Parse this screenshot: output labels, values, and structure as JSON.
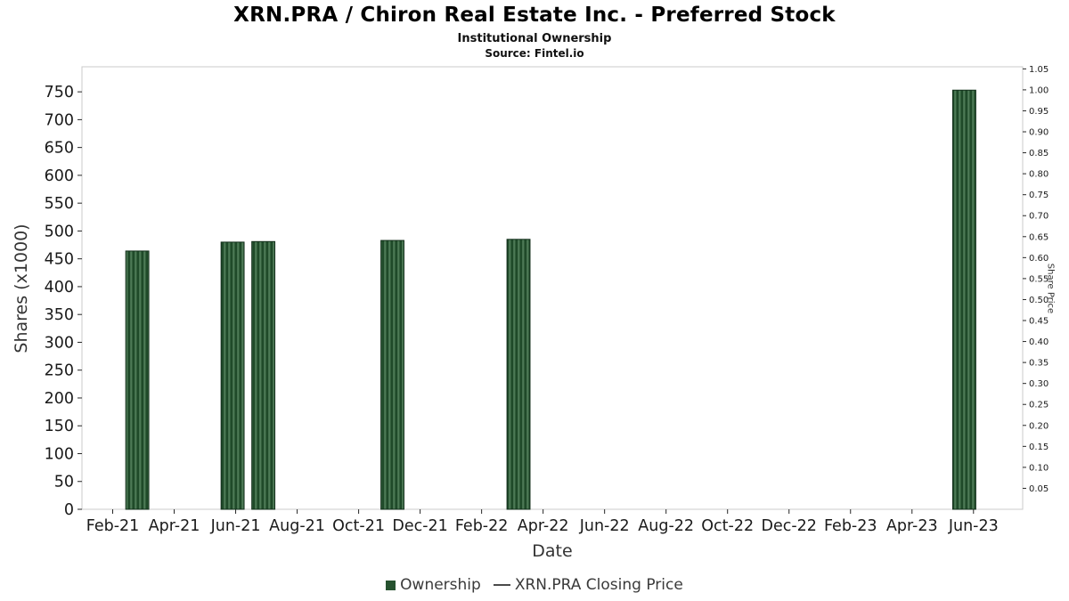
{
  "page": {
    "background": "#ffffff"
  },
  "chart_data": {
    "type": "bar",
    "title": "XRN.PRA / Chiron Real Estate Inc. - Preferred Stock",
    "subtitle": "Institutional Ownership",
    "source": "Source: Fintel.io",
    "xlabel": "Date",
    "ylabel_left": "Shares (x1000)",
    "ylabel_right": "Share Price",
    "x_tick_labels": [
      "Feb-21",
      "Apr-21",
      "Jun-21",
      "Aug-21",
      "Oct-21",
      "Dec-21",
      "Feb-22",
      "Apr-22",
      "Jun-22",
      "Aug-22",
      "Oct-22",
      "Dec-22",
      "Feb-23",
      "Apr-23",
      "Jun-23"
    ],
    "x_tick_positions": [
      1,
      3,
      5,
      7,
      9,
      11,
      13,
      15,
      17,
      19,
      21,
      23,
      25,
      27,
      29
    ],
    "x_range": [
      0,
      30.6
    ],
    "y_left_ticks": [
      0,
      50,
      100,
      150,
      200,
      250,
      300,
      350,
      400,
      450,
      500,
      550,
      600,
      650,
      700,
      750
    ],
    "y_left_range": [
      0,
      795
    ],
    "y_right_tick_labels": [
      "0.05",
      "0.10",
      "0.15",
      "0.20",
      "0.25",
      "0.30",
      "0.35",
      "0.40",
      "0.45",
      "0.50",
      "0.55",
      "0.60",
      "0.65",
      "0.70",
      "0.75",
      "0.80",
      "0.85",
      "0.90",
      "0.95",
      "1.00",
      "1.05"
    ],
    "y_right_range": [
      0,
      1.055
    ],
    "bars": [
      {
        "x": 1.8,
        "date": "Mar-21",
        "value": 464
      },
      {
        "x": 4.9,
        "date": "May-21",
        "value": 480
      },
      {
        "x": 5.9,
        "date": "Jun-21",
        "value": 481
      },
      {
        "x": 10.1,
        "date": "Nov-21",
        "value": 483
      },
      {
        "x": 14.2,
        "date": "Mar-22",
        "value": 485
      },
      {
        "x": 28.7,
        "date": "May-23",
        "value": 753
      }
    ],
    "bar_width_months": 0.75,
    "colors": {
      "bar_fill": "#1f4a29",
      "bar_hatch": "#4d7a56",
      "bar_edge": "#122e1a",
      "legend_swatch": "#26522f",
      "spine": "#cbcbcb",
      "tick": "#262626",
      "tick_label": "#1a1a1a",
      "line_marker": "#4a4a4a"
    },
    "legend": [
      {
        "label": "Ownership",
        "marker": "bar-square"
      },
      {
        "label": "XRN.PRA Closing Price",
        "marker": "line-dash"
      }
    ]
  }
}
